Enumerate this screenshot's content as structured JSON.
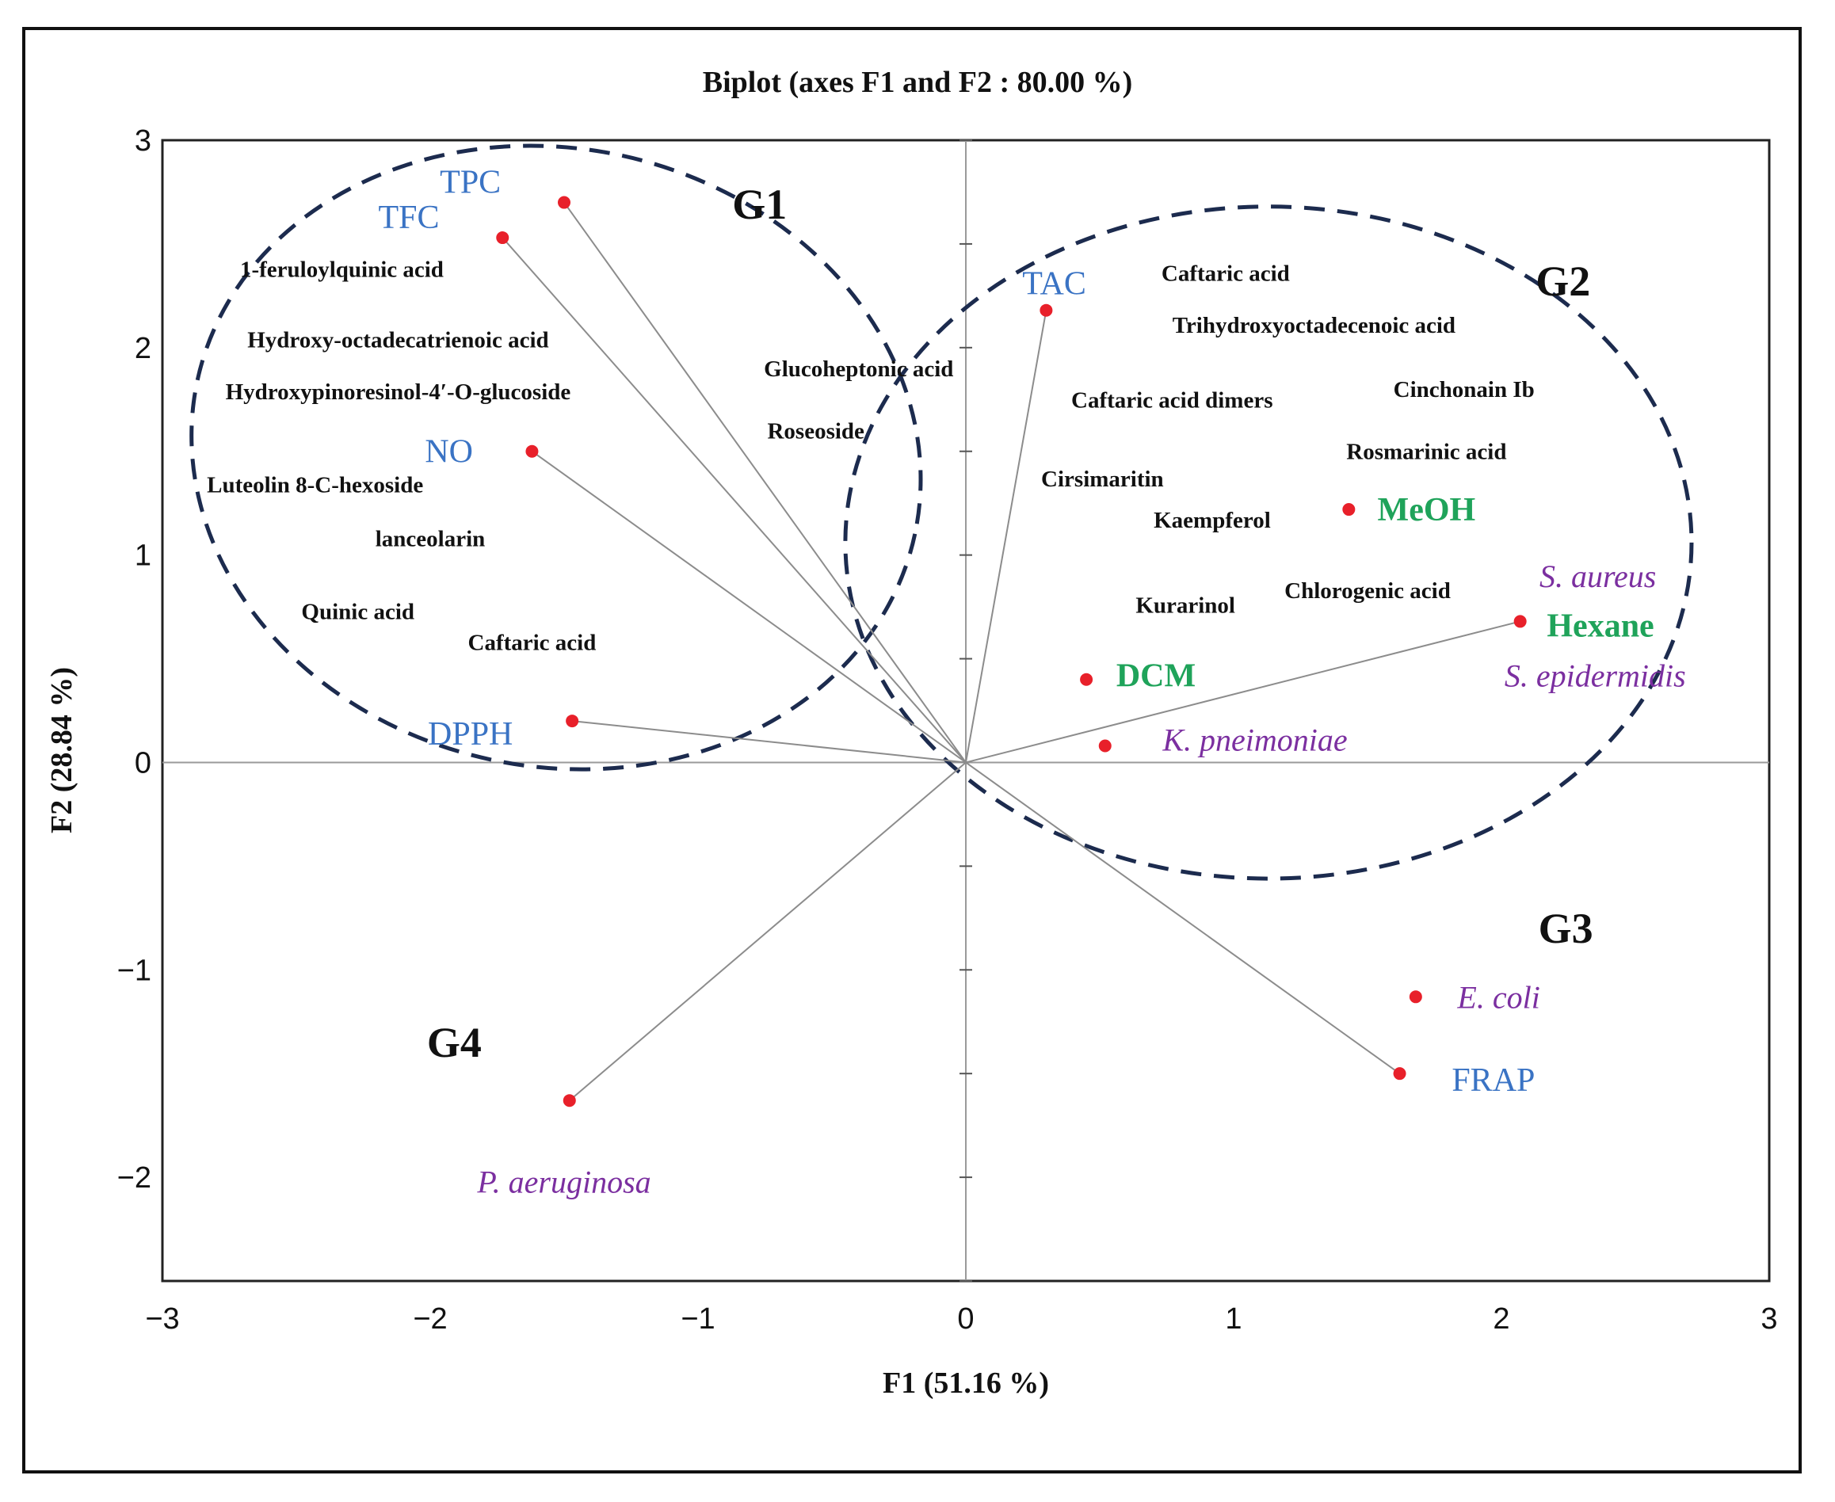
{
  "chart_data": {
    "type": "scatter",
    "subtype": "pca-biplot",
    "title": "Biplot (axes F1 and F2 : 80.00 %)",
    "xlabel": "F1 (51.16 %)",
    "ylabel": "F2 (28.84 %)",
    "xlim": [
      -3,
      3
    ],
    "ylim": [
      -2.5,
      3
    ],
    "x_ticks": [
      "−3",
      "−2",
      "−1",
      "0",
      "1",
      "2",
      "3"
    ],
    "y_ticks": [
      "3",
      "2",
      "1",
      "0",
      "−1",
      "−2"
    ],
    "colors": {
      "marker": "#e8202a",
      "variable": "#3a73c4",
      "solvent": "#1fa35a",
      "bacteria": "#7b2fa0",
      "text": "#111111",
      "ellipse": "#1c2b4e",
      "vector": "#8c8c8c"
    },
    "points": [
      {
        "id": "tpc",
        "label": "TPC",
        "group": "variable",
        "x": -1.5,
        "y": 2.7,
        "lx": -1.85,
        "ly": 2.8,
        "arrow": true
      },
      {
        "id": "tfc",
        "label": "TFC",
        "group": "variable",
        "x": -1.73,
        "y": 2.53,
        "lx": -2.08,
        "ly": 2.63,
        "arrow": true
      },
      {
        "id": "no",
        "label": "NO",
        "group": "variable",
        "x": -1.62,
        "y": 1.5,
        "lx": -1.93,
        "ly": 1.5,
        "arrow": true
      },
      {
        "id": "dpph",
        "label": "DPPH",
        "group": "variable",
        "x": -1.47,
        "y": 0.2,
        "lx": -1.85,
        "ly": 0.14,
        "arrow": true
      },
      {
        "id": "tac",
        "label": "TAC",
        "group": "variable",
        "x": 0.3,
        "y": 2.18,
        "lx": 0.33,
        "ly": 2.31,
        "arrow": true
      },
      {
        "id": "frap",
        "label": "FRAP",
        "group": "variable",
        "x": 1.62,
        "y": -1.5,
        "lx": 1.97,
        "ly": -1.53,
        "arrow": true
      },
      {
        "id": "meoh",
        "label": "MeOH",
        "group": "solvent",
        "x": 1.43,
        "y": 1.22,
        "lx": 1.72,
        "ly": 1.22,
        "arrow": false
      },
      {
        "id": "hexane",
        "label": "Hexane",
        "group": "solvent",
        "x": 2.07,
        "y": 0.68,
        "lx": 2.37,
        "ly": 0.66,
        "arrow": true
      },
      {
        "id": "dcm",
        "label": "DCM",
        "group": "solvent",
        "x": 0.45,
        "y": 0.4,
        "lx": 0.71,
        "ly": 0.42,
        "arrow": false
      },
      {
        "id": "kpn",
        "label": "K. pneimoniae",
        "group": "bacteria",
        "x": 0.52,
        "y": 0.08,
        "lx": 1.08,
        "ly": 0.11,
        "arrow": false
      },
      {
        "id": "ecoli",
        "label": "E. coli",
        "group": "bacteria",
        "x": 1.68,
        "y": -1.13,
        "lx": 1.99,
        "ly": -1.13,
        "arrow": false
      },
      {
        "id": "paer",
        "label": "P. aeruginosa",
        "group": "bacteria",
        "x": -1.48,
        "y": -1.63,
        "lx": -1.5,
        "ly": -2.02,
        "arrow": true
      }
    ],
    "extra_labels": [
      {
        "id": "saureus",
        "label": "S. aureus",
        "group": "bacteria",
        "lx": 2.36,
        "ly": 0.9
      },
      {
        "id": "sepi",
        "label": "S. epidermidis",
        "group": "bacteria",
        "lx": 2.35,
        "ly": 0.42
      }
    ],
    "compounds": [
      {
        "label": "1-feruloylquinic acid",
        "lx": -2.33,
        "ly": 2.38
      },
      {
        "label": "Hydroxy-octadecatrienoic acid",
        "lx": -2.12,
        "ly": 2.04
      },
      {
        "label": "Hydroxypinoresinol-4′-O-glucoside",
        "lx": -2.12,
        "ly": 1.79
      },
      {
        "label": "Luteolin 8-C-hexoside",
        "lx": -2.43,
        "ly": 1.34
      },
      {
        "label": "lanceolarin",
        "lx": -2.0,
        "ly": 1.08
      },
      {
        "label": "Quinic acid",
        "lx": -2.27,
        "ly": 0.73
      },
      {
        "label": "Caftaric acid",
        "lx": -1.62,
        "ly": 0.58
      },
      {
        "label": "Glucoheptonic acid",
        "lx": -0.4,
        "ly": 1.9
      },
      {
        "label": "Roseoside",
        "lx": -0.56,
        "ly": 1.6
      },
      {
        "label": "Caftaric acid",
        "lx": 0.97,
        "ly": 2.36
      },
      {
        "label": "Trihydroxyoctadecenoic acid",
        "lx": 1.3,
        "ly": 2.11
      },
      {
        "label": "Caftaric acid dimers",
        "lx": 0.77,
        "ly": 1.75
      },
      {
        "label": "Cinchonain Ib",
        "lx": 1.86,
        "ly": 1.8
      },
      {
        "label": "Rosmarinic acid",
        "lx": 1.72,
        "ly": 1.5
      },
      {
        "label": "Cirsimaritin",
        "lx": 0.51,
        "ly": 1.37
      },
      {
        "label": "Kaempferol",
        "lx": 0.92,
        "ly": 1.17
      },
      {
        "label": "Chlorogenic acid",
        "lx": 1.5,
        "ly": 0.83
      },
      {
        "label": "Kurarinol",
        "lx": 0.82,
        "ly": 0.76
      }
    ],
    "groups": [
      {
        "label": "G1",
        "lx": -0.77,
        "ly": 2.69
      },
      {
        "label": "G2",
        "lx": 2.23,
        "ly": 2.32
      },
      {
        "label": "G3",
        "lx": 2.24,
        "ly": -0.8
      },
      {
        "label": "G4",
        "lx": -1.91,
        "ly": -1.35
      }
    ],
    "ellipses": [
      {
        "group": "G1",
        "cx": -1.53,
        "cy": 1.47,
        "rx": 1.37,
        "ry": 1.49,
        "rotate_deg": 12
      },
      {
        "group": "G2",
        "cx": 1.13,
        "cy": 1.06,
        "rx": 1.58,
        "ry": 1.62,
        "rotate_deg": 0
      }
    ]
  }
}
